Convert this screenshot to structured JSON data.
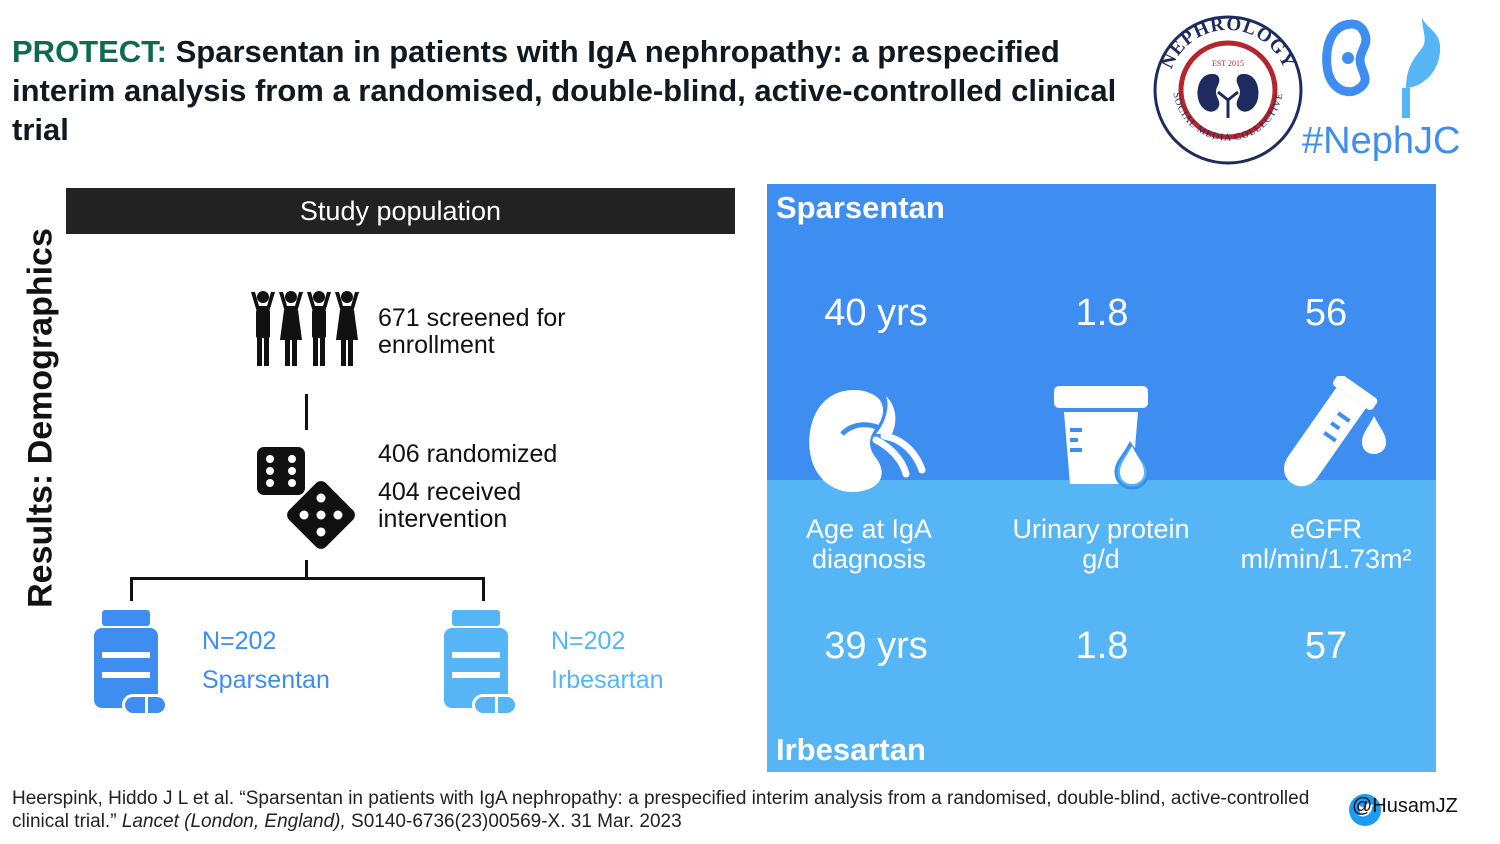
{
  "title": {
    "accent": "PROTECT:",
    "rest": "Sparsentan in patients with IgA nephropathy: a prespecified interim analysis from a randomised, double-blind, active-controlled clinical trial"
  },
  "section_heading": "Results: Demographics",
  "study_population": {
    "header": "Study population",
    "screened_line1": "671 screened for",
    "screened_line2": "enrollment",
    "randomized": "406 randomized",
    "received_line1": "404 received",
    "received_line2": "intervention",
    "arms": [
      {
        "n": "N=202",
        "name": "Sparsentan",
        "color": "#3d8ef0"
      },
      {
        "n": "N=202",
        "name": "Irbesartan",
        "color": "#56b6f5"
      }
    ]
  },
  "comparison": {
    "top_name": "Sparsentan",
    "bottom_name": "Irbesartan",
    "top_values": [
      "40 yrs",
      "1.8",
      "56"
    ],
    "bottom_values": [
      "39 yrs",
      "1.8",
      "57"
    ],
    "labels": [
      {
        "line1": "Age at IgA",
        "line2": "diagnosis"
      },
      {
        "line1": "Urinary protein",
        "line2": "g/d"
      },
      {
        "line1": "eGFR",
        "line2": "ml/min/1.73m²"
      }
    ],
    "icons": [
      "kidney-icon",
      "urine-cup-icon",
      "test-tube-icon"
    ]
  },
  "logo": {
    "ring_top": "NEPHROLOGY",
    "ring_bottom": "SOCIAL MEDIA COLLECTIVE",
    "est": "EST 2015",
    "hashtag": "#NephJC"
  },
  "citation": {
    "part1": "Heerspink, Hiddo J L et al. “Sparsentan in patients with IgA nephropathy: a prespecified interim analysis from a randomised, double-blind, active-controlled clinical trial.”",
    "journal": "Lancet (London, England),",
    "part2": "S0140-6736(23)00569-X. 31 Mar. 2023"
  },
  "twitter_handle": "@HusamJZ",
  "colors": {
    "sparsentan": "#3d8ef0",
    "irbesartan": "#56b6f5",
    "title_accent": "#0f6b4f"
  }
}
